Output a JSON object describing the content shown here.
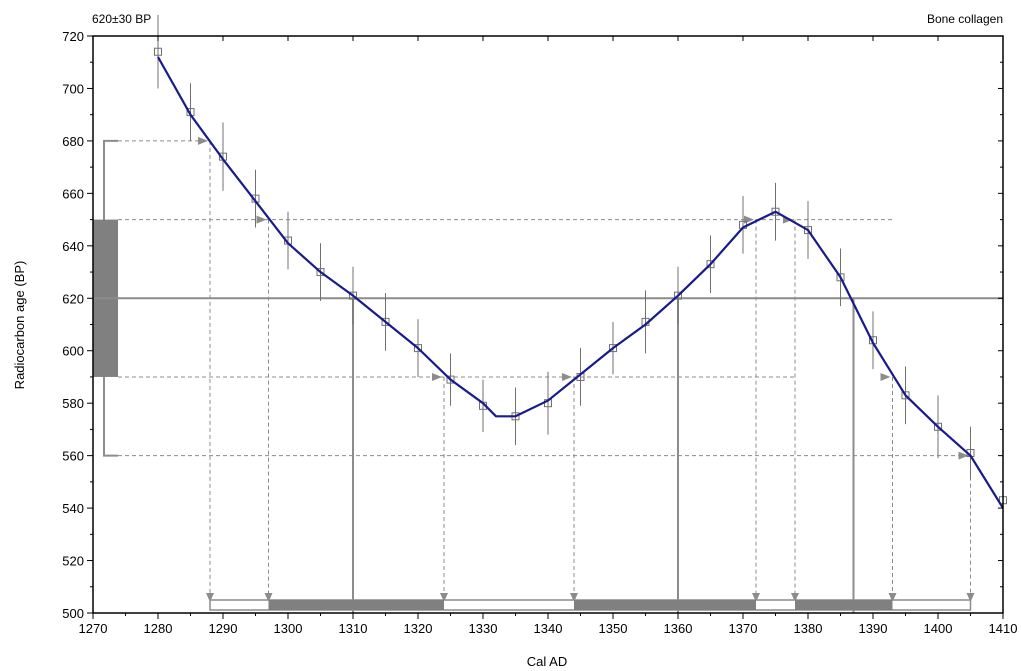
{
  "chart_data": {
    "type": "line",
    "top_left_label": "620±30 BP",
    "top_right_label": "Bone collagen",
    "xlabel": "Cal AD",
    "ylabel": "Radiocarbon age (BP)",
    "xlim": [
      1270,
      1410
    ],
    "ylim": [
      500,
      720
    ],
    "x_ticks": [
      1270,
      1280,
      1290,
      1300,
      1310,
      1320,
      1330,
      1340,
      1350,
      1360,
      1370,
      1380,
      1390,
      1400,
      1410
    ],
    "y_ticks": [
      500,
      520,
      540,
      560,
      580,
      600,
      620,
      640,
      660,
      680,
      700,
      720
    ],
    "measurement": {
      "age": 620,
      "error": 30,
      "one_sigma": [
        590,
        650
      ],
      "two_sigma": [
        560,
        680
      ]
    },
    "calibration_curve": {
      "x": [
        1280,
        1285,
        1290,
        1295,
        1300,
        1305,
        1310,
        1315,
        1320,
        1325,
        1330,
        1332,
        1335,
        1340,
        1345,
        1350,
        1355,
        1360,
        1365,
        1370,
        1375,
        1380,
        1385,
        1390,
        1395,
        1400,
        1405,
        1410
      ],
      "y": [
        712,
        690,
        673,
        657,
        641,
        630,
        621,
        611,
        601,
        589,
        580,
        575,
        575,
        581,
        591,
        601,
        610,
        621,
        633,
        647,
        653,
        646,
        628,
        603,
        583,
        571,
        560,
        540
      ]
    },
    "data_points": {
      "x": [
        1280,
        1285,
        1290,
        1295,
        1300,
        1305,
        1310,
        1315,
        1320,
        1325,
        1330,
        1335,
        1340,
        1345,
        1350,
        1355,
        1360,
        1365,
        1370,
        1375,
        1380,
        1385,
        1390,
        1395,
        1400,
        1405,
        1410
      ],
      "y": [
        714,
        691,
        674,
        658,
        642,
        630,
        621,
        611,
        601,
        589,
        579,
        575,
        580,
        590,
        601,
        611,
        621,
        633,
        648,
        653,
        646,
        628,
        604,
        583,
        571,
        561,
        543
      ],
      "error": [
        14,
        11,
        13,
        11,
        11,
        11,
        11,
        11,
        11,
        10,
        10,
        11,
        12,
        11,
        10,
        12,
        11,
        11,
        11,
        11,
        11,
        11,
        11,
        11,
        12,
        10,
        11
      ]
    },
    "intercept_x": [
      1310,
      1360,
      1387
    ],
    "one_sigma_crossings": [
      1297,
      1324,
      1344,
      1372,
      1378,
      1393
    ],
    "two_sigma_crossings": [
      1288,
      1405
    ],
    "one_sigma_ranges": [
      [
        1297,
        1324
      ],
      [
        1344,
        1372
      ],
      [
        1378,
        1393
      ]
    ],
    "two_sigma_ranges": [
      [
        1288,
        1405
      ]
    ],
    "colors": {
      "curve": "#1a1a8c",
      "range_fill": "#808080",
      "reference": "#8c8c8c",
      "point": "#707070"
    }
  }
}
